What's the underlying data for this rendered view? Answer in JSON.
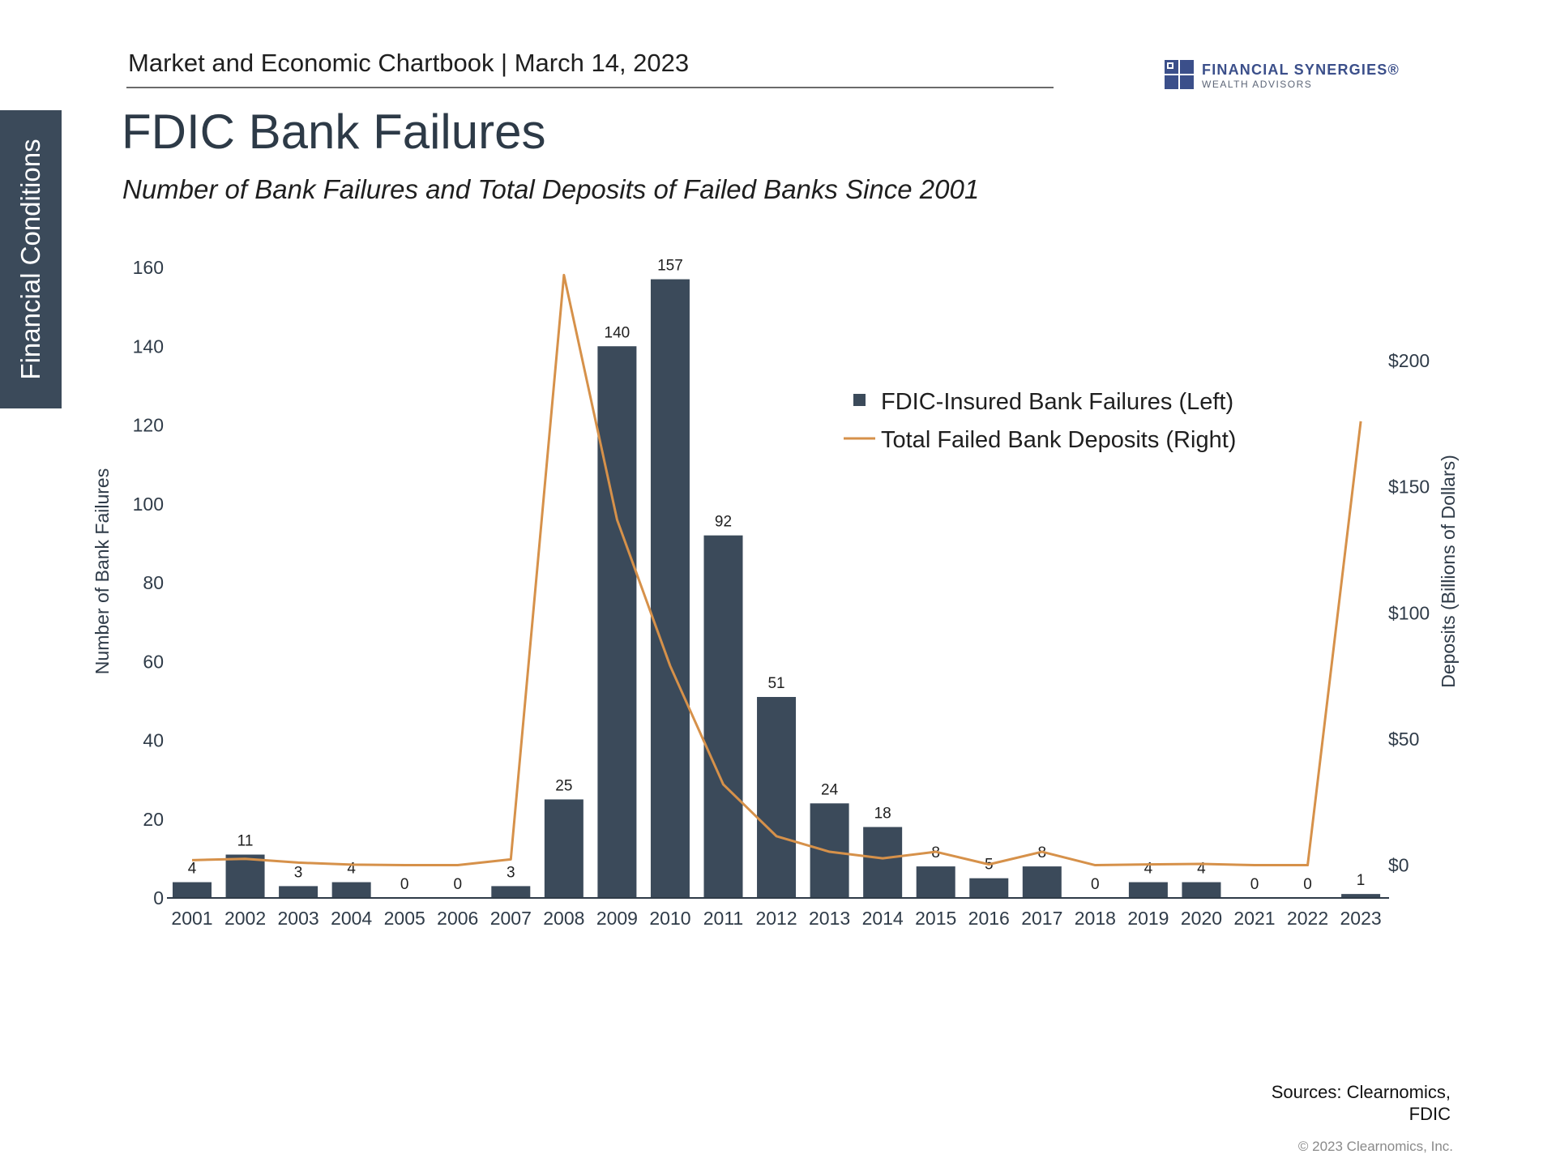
{
  "header": {
    "text": "Market and Economic Chartbook | March 14, 2023",
    "logo_name": "FINANCIAL SYNERGIES®",
    "logo_sub": "WEALTH ADVISORS"
  },
  "side_tab": {
    "label": "Financial Conditions"
  },
  "title": "FDIC Bank Failures",
  "subtitle": "Number of Bank Failures and Total Deposits of Failed Banks Since 2001",
  "colors": {
    "bar": "#3b4a5a",
    "line": "#d6914a",
    "text": "#2f3b48",
    "accent": "#3b4f8a"
  },
  "chart_data": {
    "type": "bar",
    "categories": [
      "2001",
      "2002",
      "2003",
      "2004",
      "2005",
      "2006",
      "2007",
      "2008",
      "2009",
      "2010",
      "2011",
      "2012",
      "2013",
      "2014",
      "2015",
      "2016",
      "2017",
      "2018",
      "2019",
      "2020",
      "2021",
      "2022",
      "2023"
    ],
    "series": [
      {
        "name": "FDIC-Insured Bank Failures (Left)",
        "type": "bar",
        "axis": "left",
        "values": [
          4,
          11,
          3,
          4,
          0,
          0,
          3,
          25,
          140,
          157,
          92,
          51,
          24,
          18,
          8,
          5,
          8,
          0,
          4,
          4,
          0,
          0,
          1
        ]
      },
      {
        "name": "Total Failed Bank Deposits (Right)",
        "type": "line",
        "axis": "right",
        "values": [
          2,
          2.5,
          1,
          0.2,
          0,
          0,
          2.3,
          234,
          137,
          79,
          32,
          11.5,
          5.3,
          2.7,
          5.3,
          0.3,
          5.3,
          0,
          0.3,
          0.5,
          0,
          0,
          176
        ]
      }
    ],
    "ylabel": "Number of Bank Failures",
    "y2label": "Deposits (Billions of Dollars)",
    "ylim": [
      0,
      160
    ],
    "yticks": [
      "0",
      "20",
      "40",
      "60",
      "80",
      "100",
      "120",
      "140",
      "160"
    ],
    "y2lim": [
      -13,
      237
    ],
    "y2ticks": [
      {
        "value": 0,
        "label": "$0"
      },
      {
        "value": 50,
        "label": "$50"
      },
      {
        "value": 100,
        "label": "$100"
      },
      {
        "value": 150,
        "label": "$150"
      },
      {
        "value": 200,
        "label": "$200"
      }
    ],
    "grid": false,
    "legend_position": "top-right"
  },
  "sources": {
    "line1": "Sources: Clearnomics,",
    "line2": "FDIC"
  },
  "copyright": "© 2023 Clearnomics, Inc."
}
